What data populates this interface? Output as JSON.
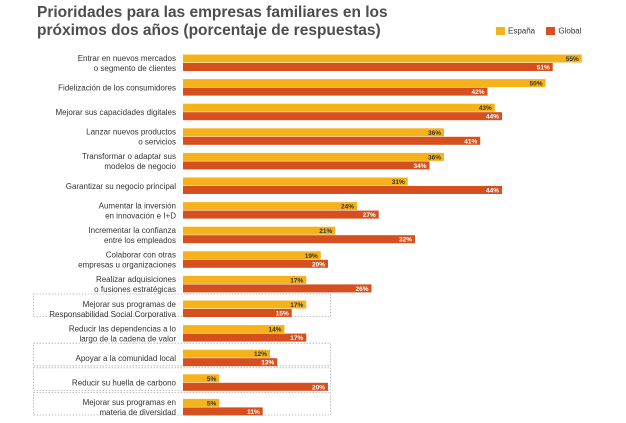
{
  "chart_data": {
    "type": "bar",
    "orientation": "horizontal",
    "title": "Prioridades para las empresas familiares en los próximos dos años (porcentaje de respuestas)",
    "xlabel": "",
    "ylabel": "",
    "xlim": [
      0,
      55
    ],
    "grid": false,
    "legend_position": "top-right",
    "categories": [
      [
        "Entrar en nuevos mercados",
        "o segmento de clientes"
      ],
      [
        "Fidelización de los consumidores"
      ],
      [
        "Mejorar sus capacidades digitales"
      ],
      [
        "Lanzar nuevos productos",
        "o servicios"
      ],
      [
        "Transformar  o adaptar sus",
        "modelos de negocio"
      ],
      [
        "Garantizar  su negocio principal"
      ],
      [
        "Aumentar  la inversión",
        "en innovación e I+D"
      ],
      [
        "Incrementar la confianza",
        "entre los empleados"
      ],
      [
        "Colaborar con otras",
        "empresas u organizaciones"
      ],
      [
        "Realizar adquisiciones",
        "o fusiones estratégicas"
      ],
      [
        "Mejorar sus programas  de",
        "Responsabilidad  Social Corporativa"
      ],
      [
        "Reducir las dependencias  a lo",
        "largo de la cadena de valor"
      ],
      [
        "Apoyar a la comunidad  local"
      ],
      [
        "Reducir su huella de carbono"
      ],
      [
        "Mejorar sus programas  en",
        "materia de diversidad"
      ]
    ],
    "boxed_categories": [
      10,
      12,
      13,
      14
    ],
    "series": [
      {
        "name": "España",
        "color": "#f5b21b",
        "values": [
          55,
          50,
          43,
          36,
          36,
          31,
          24,
          21,
          19,
          17,
          17,
          14,
          12,
          5,
          5
        ],
        "labels": [
          "55%",
          "50%",
          "43%",
          "36%",
          "36%",
          "31%",
          "24%",
          "21%",
          "19%",
          "17%",
          "17%",
          "14%",
          "12%",
          "5%",
          "5%"
        ]
      },
      {
        "name": "Global",
        "color": "#d5501e",
        "values": [
          51,
          42,
          44,
          41,
          34,
          44,
          27,
          32,
          20,
          26,
          15,
          17,
          13,
          20,
          11
        ],
        "labels": [
          "51%",
          "42%",
          "44%",
          "41%",
          "34%",
          "44%",
          "27%",
          "32%",
          "20%",
          "26%",
          "15%",
          "17%",
          "13%",
          "20%",
          "11%"
        ]
      }
    ]
  }
}
